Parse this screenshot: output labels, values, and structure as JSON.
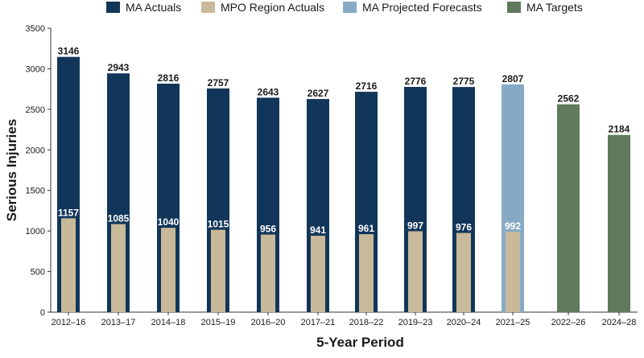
{
  "chart_data": {
    "type": "bar",
    "xlabel": "5-Year Period",
    "ylabel": "Serious Injuries",
    "ylim": [
      0,
      3500
    ],
    "yticks": [
      0,
      500,
      1000,
      1500,
      2000,
      2500,
      3000,
      3500
    ],
    "grid": false,
    "legend_position": "top",
    "categories": [
      "2012–16",
      "2013–17",
      "2014–18",
      "2015–19",
      "2016–20",
      "2017–21",
      "2018–22",
      "2019–23",
      "2020–24",
      "2021–25",
      "2022–26",
      "2024–28"
    ],
    "series": [
      {
        "name": "MA Actuals",
        "color": "#12365a",
        "values": [
          3146,
          2943,
          2816,
          2757,
          2643,
          2627,
          2716,
          2776,
          2775,
          null,
          null,
          null
        ]
      },
      {
        "name": "MPO Region Actuals",
        "color": "#c8b99a",
        "values": [
          1157,
          1085,
          1040,
          1015,
          956,
          941,
          961,
          997,
          976,
          992,
          null,
          null
        ]
      },
      {
        "name": "MA Projected Forecasts",
        "color": "#86aac6",
        "values": [
          null,
          null,
          null,
          null,
          null,
          null,
          null,
          null,
          null,
          2807,
          null,
          null
        ]
      },
      {
        "name": "MA Targets",
        "color": "#5f7a5c",
        "values": [
          null,
          null,
          null,
          null,
          null,
          null,
          null,
          null,
          null,
          null,
          2562,
          2184
        ]
      }
    ]
  }
}
